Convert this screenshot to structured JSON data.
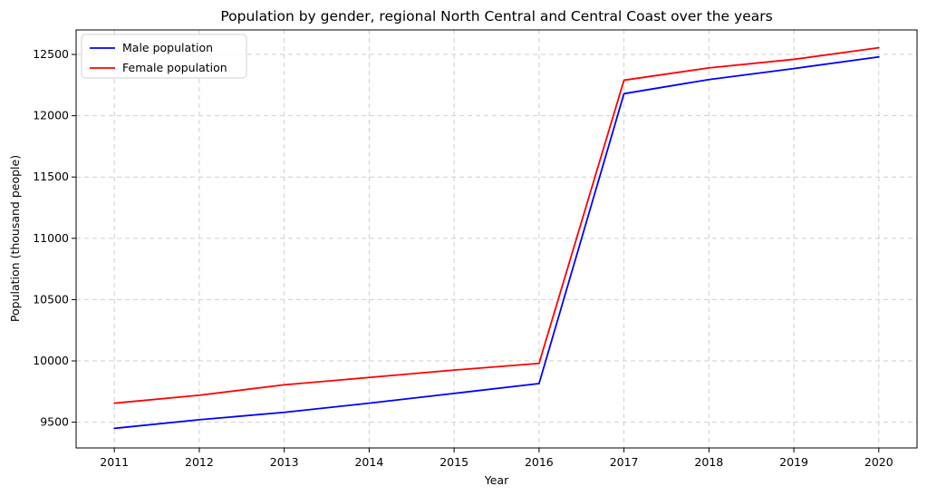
{
  "chart_data": {
    "type": "line",
    "title": "Population by gender, regional North Central and Central Coast over the years",
    "xlabel": "Year",
    "ylabel": "Population (thousand people)",
    "x": [
      2011,
      2012,
      2013,
      2014,
      2015,
      2016,
      2017,
      2018,
      2019,
      2020
    ],
    "xlim": [
      2010.55,
      2020.45
    ],
    "ylim": [
      9290,
      12700
    ],
    "yticks": [
      9500,
      10000,
      10500,
      11000,
      11500,
      12000,
      12500
    ],
    "grid": true,
    "legend_position": "upper-left",
    "series": [
      {
        "name": "Male population",
        "color": "#0000ff",
        "values": [
          9450,
          9520,
          9580,
          9655,
          9735,
          9815,
          12180,
          12295,
          12385,
          12480
        ]
      },
      {
        "name": "Female population",
        "color": "#ff0000",
        "values": [
          9655,
          9720,
          9805,
          9865,
          9925,
          9980,
          12290,
          12390,
          12460,
          12555
        ]
      }
    ]
  }
}
